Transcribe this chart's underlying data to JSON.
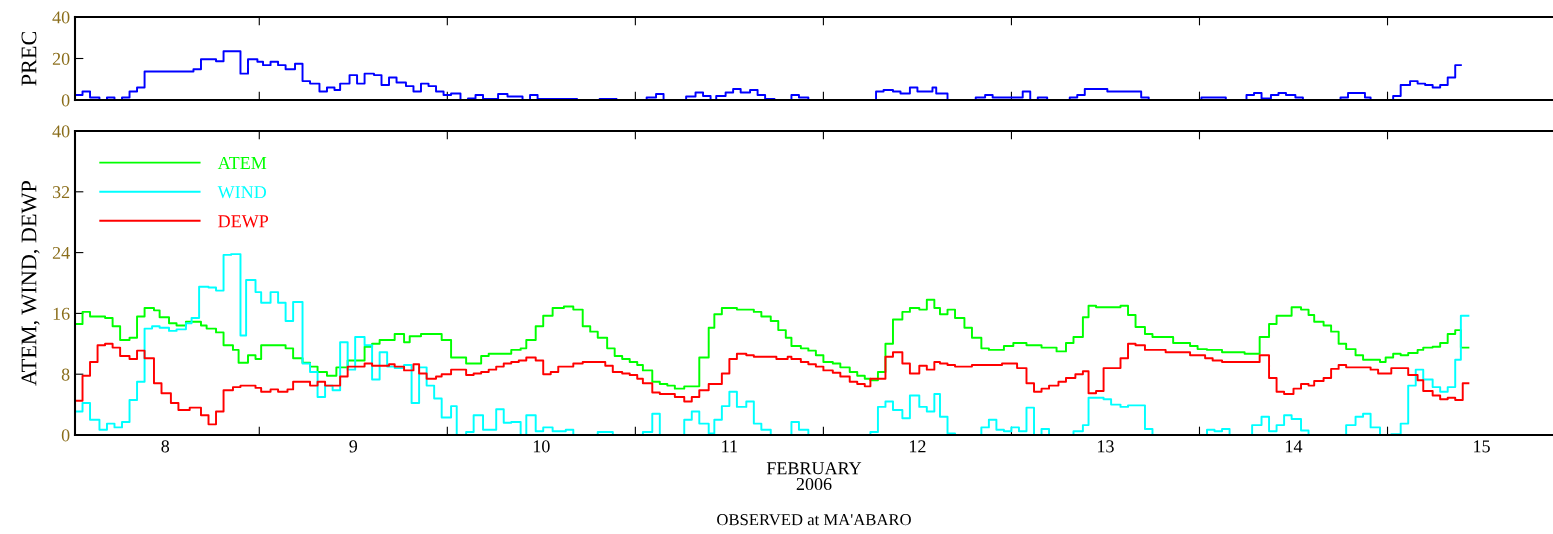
{
  "chart_data": [
    {
      "type": "step",
      "ylabel": "PREC",
      "xlim": [
        8.02,
        15.88
      ],
      "ylim": [
        0,
        40
      ],
      "yticks": [
        0,
        20,
        40
      ],
      "xticks": [
        {
          "value": 9,
          "label": null
        },
        {
          "value": 10,
          "label": null
        },
        {
          "value": 11,
          "label": null
        },
        {
          "value": 12,
          "label": null
        },
        {
          "value": 13,
          "label": null
        },
        {
          "value": 14,
          "label": null
        },
        {
          "value": 15,
          "label": null
        }
      ],
      "tick_labels": "y",
      "series": [
        {
          "color": "#0000ff",
          "x": [
            8.02,
            8.06,
            8.1,
            8.15,
            8.19,
            8.23,
            8.27,
            8.31,
            8.35,
            8.39,
            8.65,
            8.69,
            8.77,
            8.81,
            8.9,
            8.94,
            8.99,
            9.02,
            9.06,
            9.1,
            9.14,
            9.19,
            9.23,
            9.27,
            9.32,
            9.36,
            9.4,
            9.43,
            9.48,
            9.52,
            9.56,
            9.61,
            9.65,
            9.69,
            9.73,
            9.78,
            9.82,
            9.86,
            9.9,
            9.94,
            9.98,
            10.02,
            10.07,
            10.11,
            10.15,
            10.19,
            10.27,
            10.32,
            10.4,
            10.44,
            10.48,
            10.69,
            10.81,
            10.9,
            11.06,
            11.11,
            11.15,
            11.27,
            11.32,
            11.36,
            11.4,
            11.43,
            11.48,
            11.52,
            11.56,
            11.61,
            11.65,
            11.69,
            11.74,
            11.83,
            11.87,
            11.92,
            12.28,
            12.32,
            12.37,
            12.41,
            12.46,
            12.5,
            12.58,
            12.6,
            12.66,
            12.81,
            12.86,
            12.9,
            13.06,
            13.1,
            13.14,
            13.19,
            13.31,
            13.35,
            13.39,
            13.51,
            13.69,
            13.73,
            14.01,
            14.14,
            14.25,
            14.29,
            14.33,
            14.38,
            14.42,
            14.46,
            14.51,
            14.55,
            14.75,
            14.79,
            14.88,
            14.91,
            15.03,
            15.07,
            15.12,
            15.16,
            15.2,
            15.24,
            15.28,
            15.32,
            15.36,
            15.39
          ],
          "values": [
            2.4,
            4.1,
            1.2,
            0,
            1.2,
            0,
            1.2,
            4.1,
            6.0,
            13.7,
            14.8,
            19.6,
            18.7,
            23.5,
            12.7,
            19.6,
            18.4,
            16.8,
            18.4,
            16.8,
            14.8,
            17.5,
            9.1,
            7.9,
            4.1,
            6.0,
            4.8,
            7.9,
            12.0,
            7.9,
            12.7,
            12.0,
            7.2,
            10.8,
            8.4,
            6.7,
            4.1,
            7.9,
            6.7,
            4.1,
            2.4,
            3.1,
            0,
            0.7,
            2.4,
            0.5,
            2.9,
            1.7,
            0,
            2.4,
            0.5,
            0,
            0.5,
            0,
            1.2,
            2.9,
            0,
            1.7,
            3.6,
            1.9,
            0,
            1.9,
            3.6,
            5.3,
            3.6,
            4.8,
            2.4,
            0.5,
            0,
            2.4,
            1.2,
            0,
            4.1,
            4.8,
            4.1,
            3.1,
            6.0,
            4.1,
            6.0,
            3.1,
            0,
            1.2,
            2.4,
            1.2,
            4.1,
            0,
            1.2,
            0,
            1.2,
            2.4,
            5.3,
            4.1,
            1.2,
            0,
            1.2,
            0,
            2.4,
            3.4,
            0.7,
            2.4,
            3.4,
            2.4,
            1.2,
            0,
            1.2,
            3.4,
            1.2,
            0,
            1.9,
            7.2,
            9.1,
            7.9,
            7.2,
            6.0,
            7.2,
            10.8,
            16.8,
            16.8
          ]
        }
      ]
    },
    {
      "type": "step",
      "ylabel": "ATEM, WIND, DEWP",
      "xlabel": "FEBRUARY\n2006",
      "annotations": [
        "OBSERVED at MA'ABARO"
      ],
      "xlim": [
        8.02,
        15.88
      ],
      "ylim": [
        0,
        40
      ],
      "yticks": [
        0,
        8,
        16,
        24,
        32,
        40
      ],
      "xticks": [
        {
          "value": 8.5,
          "label": "8"
        },
        {
          "value": 9.5,
          "label": "9"
        },
        {
          "value": 10.5,
          "label": "10"
        },
        {
          "value": 11.5,
          "label": "11"
        },
        {
          "value": 12.5,
          "label": "12"
        },
        {
          "value": 13.5,
          "label": "13"
        },
        {
          "value": 14.5,
          "label": "14"
        },
        {
          "value": 15.5,
          "label": "15"
        },
        {
          "value": 9,
          "label": null
        },
        {
          "value": 10,
          "label": null
        },
        {
          "value": 11,
          "label": null
        },
        {
          "value": 12,
          "label": null
        },
        {
          "value": 13,
          "label": null
        },
        {
          "value": 14,
          "label": null
        },
        {
          "value": 15,
          "label": null
        }
      ],
      "legend": "top left",
      "series": [
        {
          "name": "ATEM",
          "color": "#00ff00",
          "x": [
            8.02,
            8.06,
            8.1,
            8.18,
            8.22,
            8.26,
            8.31,
            8.35,
            8.39,
            8.44,
            8.47,
            8.52,
            8.56,
            8.61,
            8.69,
            8.72,
            8.77,
            8.81,
            8.86,
            8.89,
            8.94,
            8.98,
            9.01,
            9.14,
            9.18,
            9.23,
            9.27,
            9.31,
            9.36,
            9.41,
            9.47,
            9.56,
            9.6,
            9.64,
            9.72,
            9.77,
            9.8,
            9.86,
            9.97,
            10.02,
            10.1,
            10.18,
            10.22,
            10.34,
            10.39,
            10.42,
            10.47,
            10.51,
            10.56,
            10.62,
            10.67,
            10.72,
            10.76,
            10.8,
            10.85,
            10.89,
            10.93,
            10.97,
            11.01,
            11.04,
            11.09,
            11.13,
            11.17,
            11.21,
            11.26,
            11.34,
            11.39,
            11.42,
            11.46,
            11.54,
            11.63,
            11.67,
            11.72,
            11.76,
            11.8,
            11.83,
            11.88,
            11.92,
            11.96,
            12.0,
            12.05,
            12.09,
            12.14,
            12.18,
            12.22,
            12.25,
            12.29,
            12.33,
            12.37,
            12.42,
            12.46,
            12.51,
            12.55,
            12.59,
            12.62,
            12.66,
            12.7,
            12.75,
            12.79,
            12.84,
            12.88,
            12.96,
            13.01,
            13.08,
            13.16,
            13.24,
            13.29,
            13.33,
            13.38,
            13.41,
            13.45,
            13.58,
            13.62,
            13.66,
            13.71,
            13.75,
            13.86,
            13.95,
            13.99,
            14.04,
            14.12,
            14.24,
            14.32,
            14.37,
            14.41,
            14.49,
            14.54,
            14.58,
            14.61,
            14.66,
            14.7,
            14.74,
            14.78,
            14.83,
            14.87,
            14.96,
            14.99,
            15.03,
            15.07,
            15.11,
            15.16,
            15.19,
            15.24,
            15.28,
            15.32,
            15.36,
            15.39,
            15.43
          ],
          "values": [
            14.6,
            16.2,
            15.6,
            15.4,
            14.3,
            12.5,
            12.8,
            15.6,
            16.7,
            16.4,
            15.5,
            14.7,
            14.4,
            14.9,
            14.4,
            14.0,
            13.5,
            11.8,
            11.2,
            9.5,
            10.5,
            10.0,
            11.8,
            11.4,
            10.1,
            9.5,
            9.0,
            8.3,
            7.8,
            8.9,
            9.8,
            11.6,
            12.0,
            12.5,
            13.3,
            12.2,
            13.0,
            13.3,
            12.5,
            10.2,
            9.4,
            10.4,
            10.7,
            11.2,
            11.4,
            12.5,
            14.3,
            15.7,
            16.7,
            16.9,
            16.5,
            14.3,
            13.6,
            12.8,
            11.4,
            10.4,
            10.0,
            9.6,
            9.2,
            8.5,
            7.0,
            6.7,
            6.5,
            6.1,
            6.4,
            10.2,
            14.1,
            15.9,
            16.7,
            16.5,
            16.2,
            15.6,
            15.0,
            13.8,
            12.8,
            11.7,
            11.4,
            11.1,
            10.5,
            9.6,
            9.4,
            8.9,
            8.3,
            7.8,
            7.4,
            7.2,
            8.3,
            12.0,
            15.2,
            16.2,
            16.7,
            16.5,
            17.8,
            16.7,
            15.9,
            16.5,
            15.4,
            14.1,
            12.8,
            11.4,
            11.2,
            11.7,
            12.1,
            11.8,
            11.5,
            11.0,
            12.1,
            12.9,
            15.5,
            17.0,
            16.8,
            17.0,
            15.8,
            14.2,
            13.3,
            12.9,
            12.1,
            11.7,
            11.3,
            11.2,
            10.9,
            10.7,
            12.9,
            14.6,
            15.7,
            16.8,
            16.5,
            15.8,
            14.9,
            14.4,
            13.6,
            12.0,
            11.3,
            10.5,
            9.9,
            9.6,
            10.2,
            10.7,
            10.5,
            10.8,
            11.2,
            11.5,
            11.6,
            12.1,
            13.3,
            13.8,
            11.5,
            11.5
          ]
        },
        {
          "name": "WIND",
          "color": "#00ffff",
          "x": [
            8.02,
            8.06,
            8.1,
            8.15,
            8.19,
            8.23,
            8.27,
            8.31,
            8.35,
            8.39,
            8.43,
            8.47,
            8.52,
            8.56,
            8.61,
            8.64,
            8.68,
            8.73,
            8.77,
            8.81,
            8.85,
            8.9,
            8.93,
            8.98,
            9.01,
            9.06,
            9.1,
            9.14,
            9.18,
            9.23,
            9.27,
            9.31,
            9.35,
            9.39,
            9.43,
            9.47,
            9.51,
            9.56,
            9.6,
            9.64,
            9.68,
            9.72,
            9.77,
            9.81,
            9.85,
            9.89,
            9.93,
            9.97,
            10.02,
            10.05,
            10.1,
            10.14,
            10.19,
            10.26,
            10.3,
            10.34,
            10.39,
            10.42,
            10.47,
            10.51,
            10.56,
            10.63,
            10.67,
            10.8,
            10.88,
            11.04,
            11.09,
            11.13,
            11.26,
            11.3,
            11.34,
            11.39,
            11.42,
            11.46,
            11.5,
            11.54,
            11.59,
            11.63,
            11.67,
            11.72,
            11.83,
            11.87,
            11.92,
            12.25,
            12.29,
            12.33,
            12.37,
            12.42,
            12.46,
            12.51,
            12.55,
            12.59,
            12.62,
            12.66,
            12.7,
            12.84,
            12.88,
            12.92,
            12.96,
            13.0,
            13.04,
            13.08,
            13.12,
            13.16,
            13.2,
            13.33,
            13.38,
            13.41,
            13.49,
            13.53,
            13.58,
            13.62,
            13.71,
            13.75,
            14.04,
            14.08,
            14.12,
            14.16,
            14.28,
            14.33,
            14.37,
            14.41,
            14.45,
            14.49,
            14.54,
            14.58,
            14.78,
            14.83,
            14.87,
            14.91,
            14.96,
            15.02,
            15.07,
            15.11,
            15.15,
            15.19,
            15.24,
            15.28,
            15.32,
            15.36,
            15.39,
            15.43
          ],
          "values": [
            3.1,
            4.2,
            2.0,
            0.7,
            1.5,
            1.0,
            1.7,
            4.6,
            7.0,
            14.0,
            14.3,
            14.1,
            13.7,
            13.9,
            14.7,
            15.4,
            19.5,
            19.4,
            19.0,
            23.7,
            23.8,
            13.1,
            20.4,
            18.8,
            17.4,
            18.8,
            17.4,
            15.0,
            17.5,
            9.4,
            8.3,
            5.0,
            6.5,
            5.9,
            12.2,
            8.6,
            12.9,
            11.8,
            7.3,
            10.9,
            9.0,
            8.8,
            9.2,
            4.2,
            8.9,
            6.5,
            4.8,
            2.3,
            3.8,
            0,
            0.4,
            2.6,
            0.7,
            3.4,
            1.6,
            1.7,
            0,
            2.6,
            0.5,
            1.0,
            0.5,
            0.7,
            0,
            0.4,
            0,
            0.4,
            2.8,
            0,
            2.0,
            3.1,
            1.5,
            0.2,
            2.0,
            3.8,
            5.7,
            3.7,
            4.4,
            1.5,
            0.7,
            0,
            1.7,
            0.7,
            0,
            0.4,
            3.7,
            4.4,
            3.3,
            2.2,
            5.2,
            3.7,
            3.1,
            5.4,
            2.4,
            0.2,
            0,
            1.0,
            2.0,
            0.7,
            0.5,
            1.0,
            0.5,
            3.6,
            0,
            0.8,
            0,
            0.5,
            1.3,
            4.9,
            4.7,
            4.0,
            3.7,
            3.9,
            0.8,
            0,
            0.7,
            0.5,
            0.8,
            0,
            1.3,
            2.4,
            0.5,
            1.3,
            2.6,
            2.1,
            0.6,
            0,
            1.3,
            2.4,
            2.8,
            1.0,
            0,
            0.1,
            1.5,
            6.5,
            8.6,
            7.3,
            6.3,
            5.7,
            6.3,
            9.9,
            15.7,
            15.7
          ]
        },
        {
          "name": "DEWP",
          "color": "#ff0000",
          "x": [
            8.02,
            8.06,
            8.1,
            8.14,
            8.18,
            8.22,
            8.26,
            8.31,
            8.35,
            8.39,
            8.44,
            8.48,
            8.53,
            8.57,
            8.63,
            8.69,
            8.73,
            8.77,
            8.81,
            8.86,
            8.9,
            8.98,
            9.01,
            9.06,
            9.1,
            9.15,
            9.18,
            9.27,
            9.31,
            9.35,
            9.43,
            9.47,
            9.56,
            9.6,
            9.69,
            9.72,
            9.77,
            9.82,
            9.85,
            9.89,
            9.94,
            9.97,
            10.02,
            10.1,
            10.14,
            10.18,
            10.22,
            10.26,
            10.3,
            10.34,
            10.38,
            10.42,
            10.47,
            10.51,
            10.55,
            10.59,
            10.67,
            10.72,
            10.84,
            10.88,
            10.93,
            10.97,
            11.01,
            11.04,
            11.09,
            11.13,
            11.21,
            11.26,
            11.3,
            11.34,
            11.39,
            11.46,
            11.5,
            11.54,
            11.59,
            11.63,
            11.75,
            11.81,
            11.83,
            11.88,
            11.92,
            11.96,
            12.0,
            12.05,
            12.09,
            12.14,
            12.18,
            12.22,
            12.25,
            12.33,
            12.37,
            12.42,
            12.46,
            12.51,
            12.55,
            12.59,
            12.62,
            12.66,
            12.7,
            12.79,
            12.95,
            13.03,
            13.08,
            13.12,
            13.16,
            13.2,
            13.25,
            13.29,
            13.34,
            13.38,
            13.41,
            13.45,
            13.49,
            13.58,
            13.62,
            13.66,
            13.71,
            13.82,
            13.95,
            14.03,
            14.07,
            14.12,
            14.32,
            14.37,
            14.41,
            14.45,
            14.5,
            14.54,
            14.58,
            14.61,
            14.66,
            14.7,
            14.74,
            14.78,
            14.91,
            14.95,
            15.02,
            15.11,
            15.16,
            15.19,
            15.24,
            15.28,
            15.32,
            15.36,
            15.4,
            15.43
          ],
          "values": [
            4.5,
            7.8,
            9.6,
            11.8,
            12.0,
            11.5,
            10.4,
            10.0,
            11.1,
            10.1,
            6.8,
            5.5,
            4.2,
            3.3,
            3.6,
            2.6,
            1.4,
            3.1,
            5.9,
            6.3,
            6.5,
            6.2,
            5.7,
            6.0,
            5.7,
            6.0,
            7.0,
            6.5,
            7.0,
            6.5,
            7.7,
            9.0,
            9.4,
            9.1,
            9.3,
            9.0,
            8.5,
            9.3,
            8.1,
            7.4,
            7.7,
            8.0,
            8.6,
            7.9,
            8.1,
            8.3,
            8.6,
            9.0,
            9.4,
            9.6,
            9.8,
            10.2,
            9.8,
            8.0,
            8.3,
            9.0,
            9.4,
            9.6,
            9.1,
            8.3,
            8.1,
            7.9,
            7.4,
            6.8,
            5.6,
            5.4,
            5.0,
            4.4,
            5.0,
            5.9,
            6.7,
            8.1,
            10.0,
            10.7,
            10.5,
            10.3,
            10.0,
            10.3,
            10.0,
            9.6,
            9.3,
            9.0,
            8.5,
            8.2,
            7.7,
            7.0,
            6.7,
            6.4,
            7.4,
            10.3,
            10.9,
            9.4,
            8.1,
            9.1,
            8.6,
            9.6,
            9.4,
            9.2,
            9.0,
            9.2,
            9.4,
            8.8,
            6.8,
            5.7,
            6.1,
            6.5,
            7.0,
            7.5,
            8.0,
            8.4,
            5.5,
            5.8,
            8.8,
            10.1,
            12.0,
            11.8,
            11.2,
            10.9,
            10.5,
            10.1,
            9.8,
            9.6,
            10.5,
            7.5,
            5.7,
            5.4,
            6.1,
            6.7,
            6.5,
            7.1,
            7.5,
            8.7,
            9.2,
            8.9,
            8.6,
            8.1,
            8.8,
            7.9,
            7.2,
            5.8,
            5.2,
            4.7,
            4.9,
            4.6,
            6.8,
            6.8
          ]
        }
      ]
    }
  ]
}
